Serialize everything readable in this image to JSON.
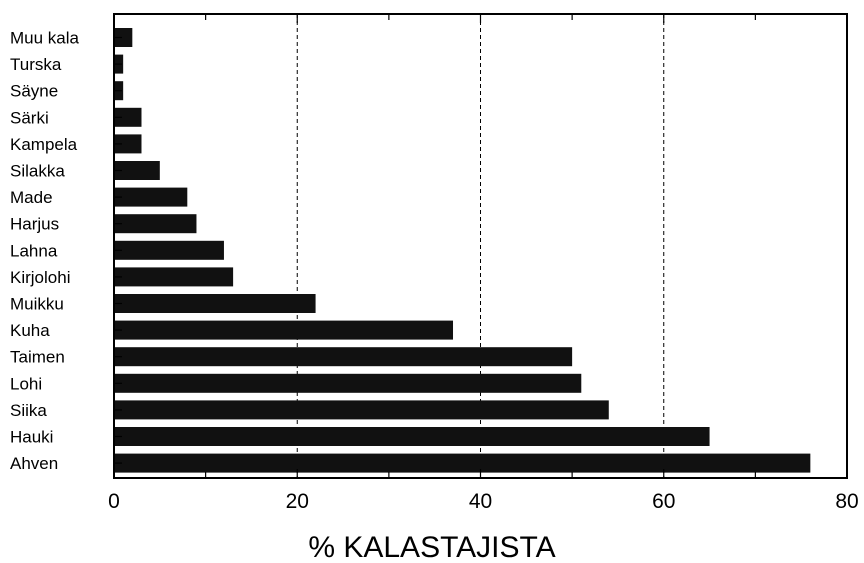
{
  "chart_data": {
    "type": "bar",
    "orientation": "horizontal",
    "categories": [
      "Muu kala",
      "Turska",
      "Säyne",
      "Särki",
      "Kampela",
      "Silakka",
      "Made",
      "Harjus",
      "Lahna",
      "Kirjolohi",
      "Muikku",
      "Kuha",
      "Taimen",
      "Lohi",
      "Siika",
      "Hauki",
      "Ahven"
    ],
    "values": [
      2,
      1,
      1,
      3,
      3,
      5,
      8,
      9,
      12,
      13,
      22,
      37,
      50,
      51,
      54,
      65,
      76
    ],
    "xlabel": "% KALASTAJISTA",
    "ylabel": "",
    "title": "",
    "xlim": [
      0,
      80
    ],
    "x_ticks": [
      "0",
      "20",
      "40",
      "60",
      "80"
    ],
    "grid": "vertical dashed lines at 20, 40, 60",
    "bar_color": "#111111"
  }
}
